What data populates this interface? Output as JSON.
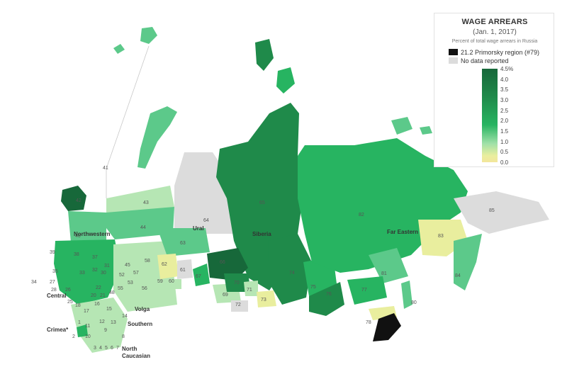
{
  "legend": {
    "title": "WAGE ARREARS",
    "subtitle": "(Jan. 1, 2017)",
    "note": "Percent of total wage arrears in Russia",
    "highlight": "21.2 Primorsky region (#79)",
    "no_data": "No data reported",
    "ticks": [
      "4.5%",
      "4.0",
      "3.5",
      "3.0",
      "2.5",
      "2.0",
      "1.5",
      "1.0",
      "0.5",
      "0.0"
    ]
  },
  "colors": {
    "darkest": "#17683a",
    "dark": "#1f8a4a",
    "mid": "#27b461",
    "light": "#5cc98a",
    "pale": "#b6e6b4",
    "yellow": "#e9ee9e",
    "nodata": "#dcdcdc",
    "highlight": "#111111"
  },
  "districts": {
    "northwestern": "Northwestern",
    "ural": "Ural",
    "siberia": "Siberia",
    "far_eastern": "Far Eastern",
    "central": "Central",
    "volga": "Volga",
    "southern": "Southern",
    "north": "North",
    "caucasian": "Caucasian",
    "crimea": "Crimea*"
  },
  "region_labels": {
    "r41": "41",
    "r42": "42",
    "r43": "43",
    "r44": "44",
    "r40": "40",
    "r39": "39",
    "r38": "38",
    "r37": "37",
    "r31": "31",
    "r32": "32",
    "r33": "33",
    "r35": "35",
    "r34": "34",
    "r27": "27",
    "r28": "28",
    "r26": "26",
    "r25": "25",
    "r18": "18",
    "r17": "17",
    "r16": "16",
    "r15": "15",
    "r14": "14",
    "r13": "13",
    "r12": "12",
    "r11": "11",
    "r10": "10",
    "r9": "9",
    "r8": "8",
    "r2": "2",
    "r3": "3",
    "r4": "4",
    "r5": "5",
    "r6": "6",
    "r7": "7",
    "r1": "1",
    "r20": "20",
    "r21": "21",
    "r22": "22",
    "r30": "30",
    "r45": "45",
    "r48": "48",
    "r52": "52",
    "r53": "53",
    "r55": "55",
    "r56": "56",
    "r57": "57",
    "r58": "58",
    "r59": "59",
    "r60": "60",
    "r61": "61",
    "r62": "62",
    "r63": "63",
    "r64": "64",
    "r65": "65",
    "r66": "66",
    "r67": "67",
    "r69": "69",
    "r70": "70",
    "r71": "71",
    "r72": "72",
    "r73": "73",
    "r74": "74",
    "r75": "75",
    "r76": "76",
    "r77": "77",
    "r78": "78",
    "r80": "80",
    "r81": "81",
    "r82": "82",
    "r83": "83",
    "r84": "84",
    "r85": "85"
  }
}
